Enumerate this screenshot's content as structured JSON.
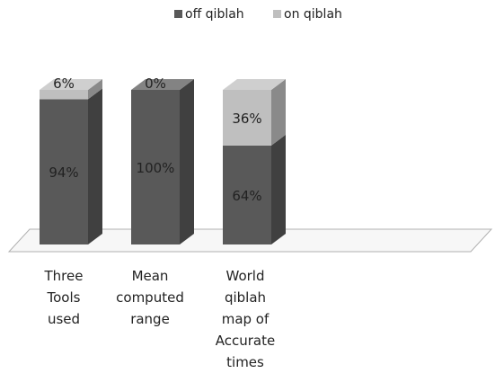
{
  "chart_data": {
    "type": "bar",
    "stacked": true,
    "three_d": true,
    "legend_position": "top",
    "grid": false,
    "categories": [
      [
        "Three",
        "Tools",
        "used"
      ],
      [
        "Mean",
        "computed",
        "range"
      ],
      [
        "World",
        "qiblah",
        "map of",
        "Accurate",
        "times"
      ]
    ],
    "series": [
      {
        "name": "off qiblah",
        "values": [
          94,
          100,
          64
        ],
        "labels": [
          "94%",
          "100%",
          "64%"
        ],
        "color": "#595959"
      },
      {
        "name": "on qiblah",
        "values": [
          6,
          0,
          36
        ],
        "labels": [
          "6%",
          "0%",
          "36%"
        ],
        "color": "#bfbfbf"
      }
    ],
    "ylim": [
      0,
      100
    ]
  }
}
